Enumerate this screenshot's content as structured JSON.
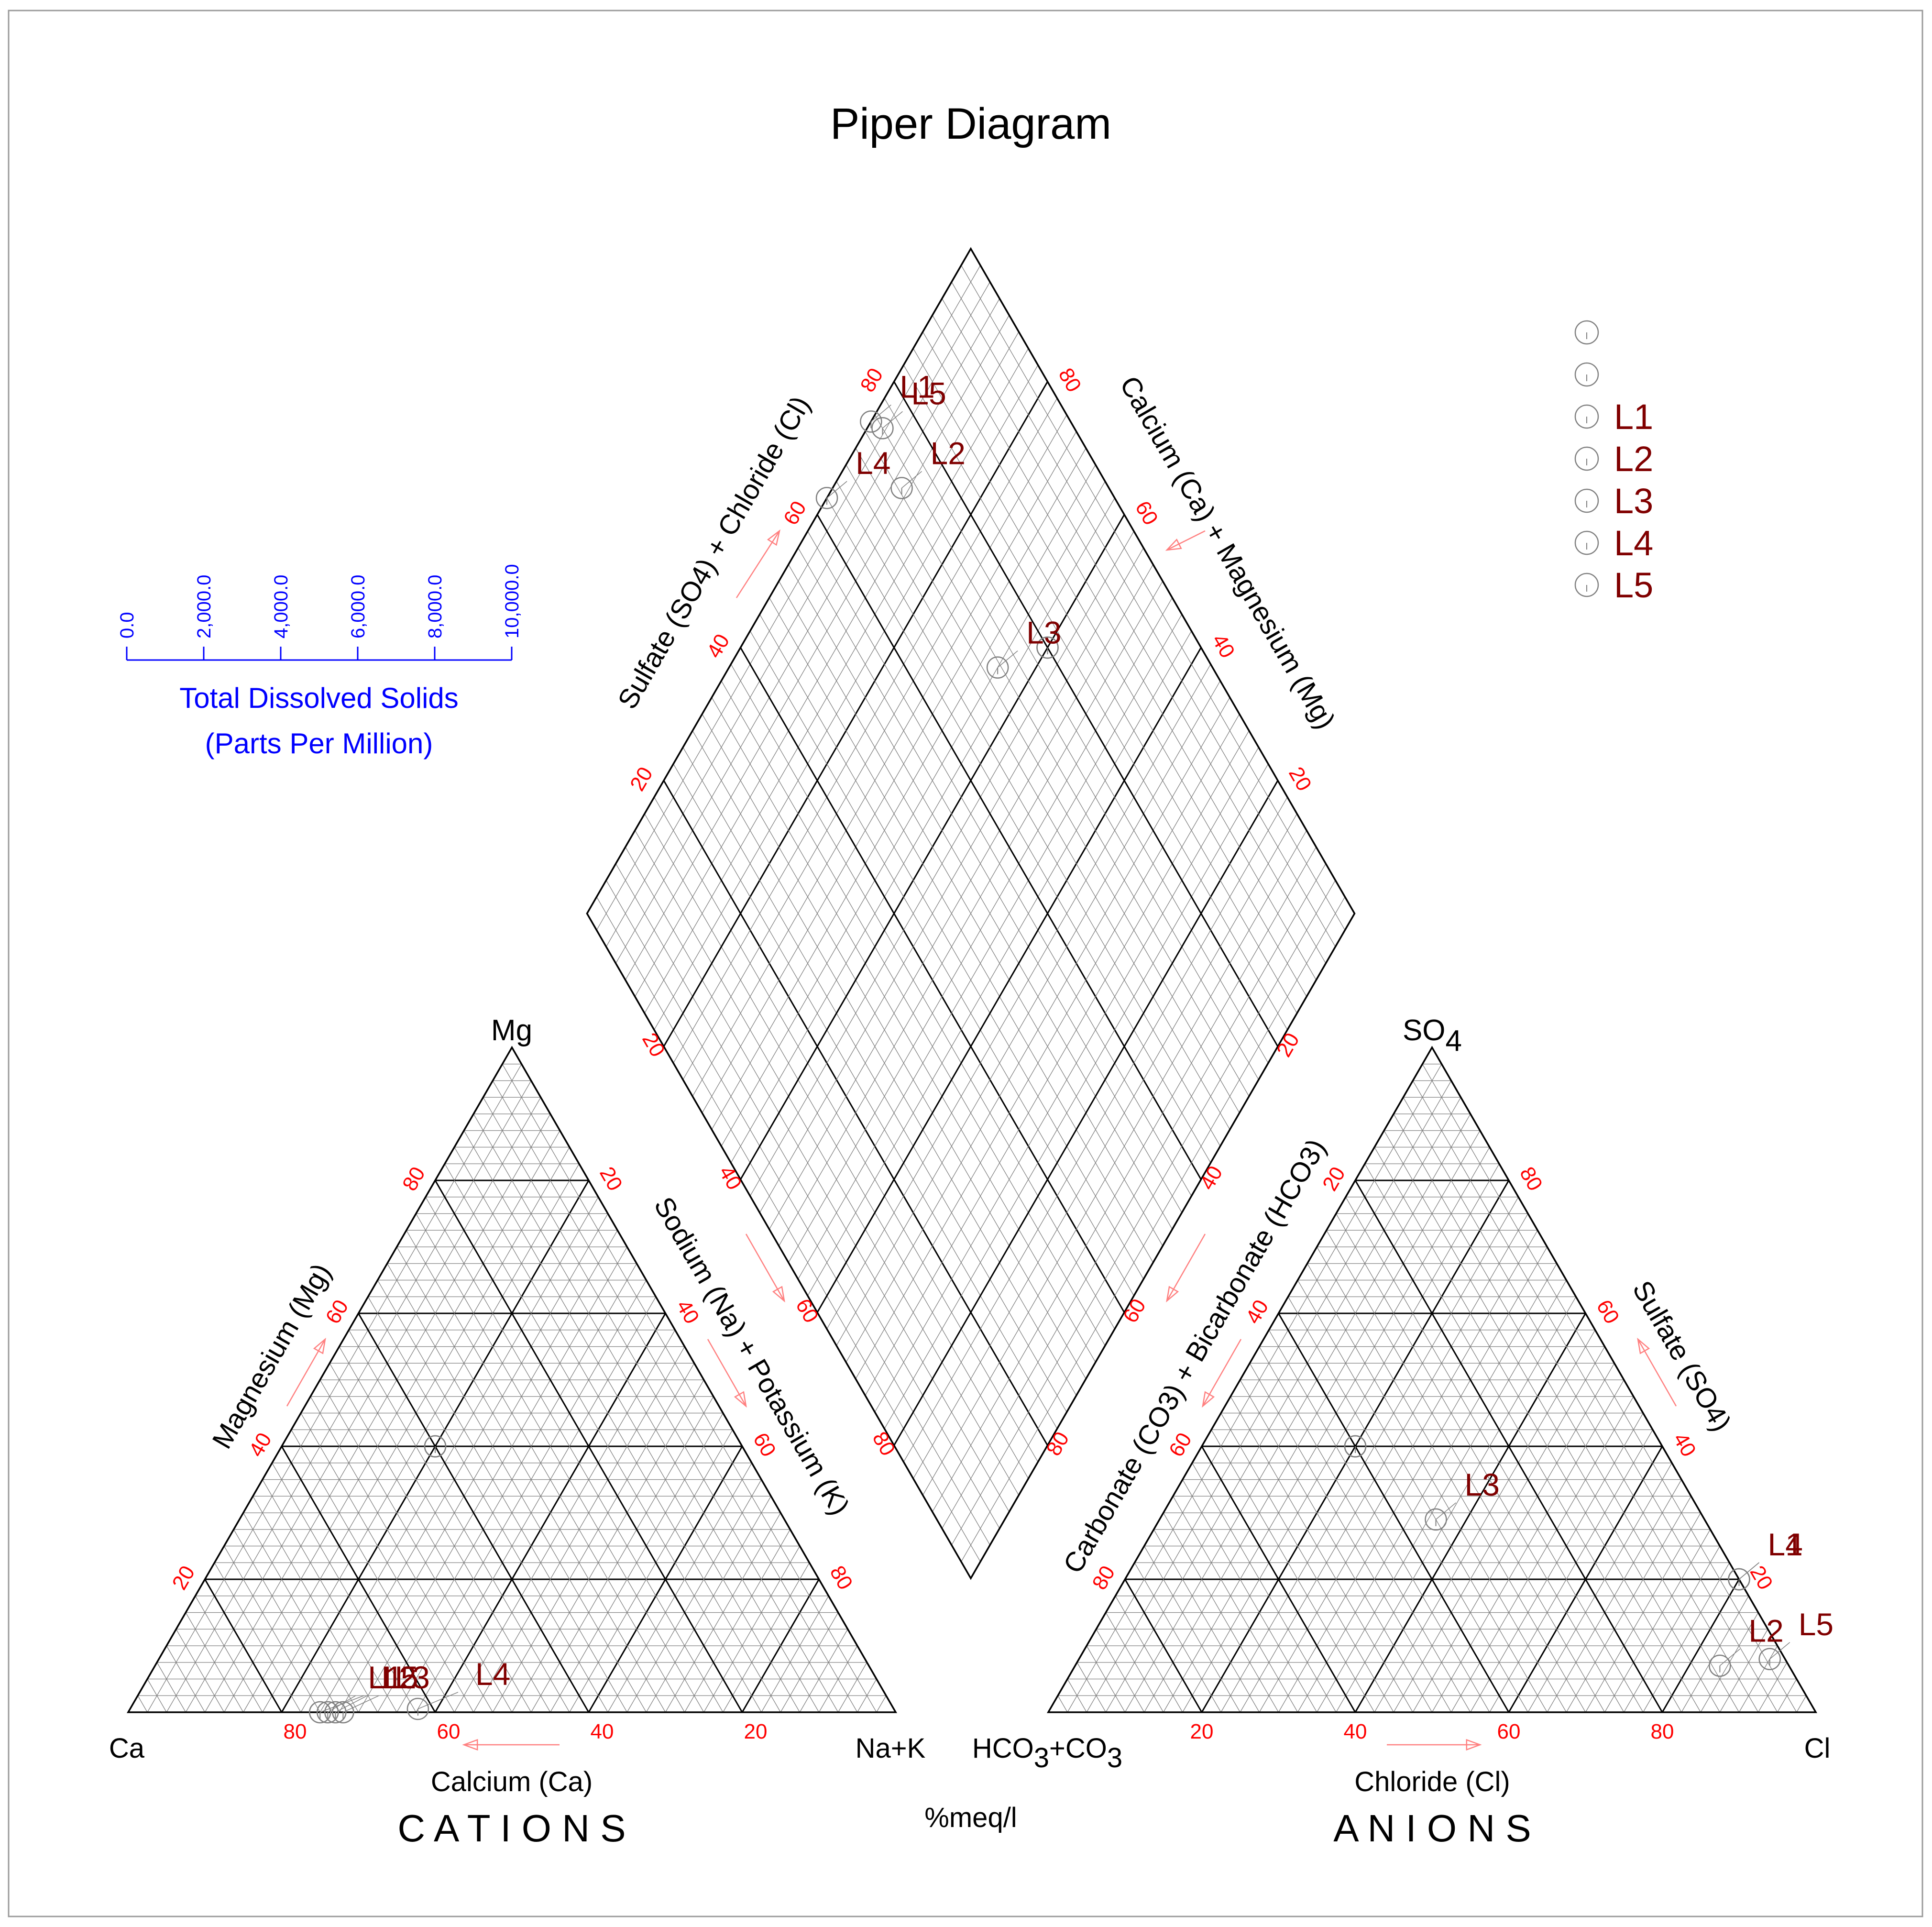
{
  "title": "Piper Diagram",
  "unit_label": "%meq/l",
  "colors": {
    "axis_number": "#ff0000",
    "arrow": "#ff8080",
    "sample_label": "#800000",
    "tds": "#0000ff",
    "grid_minor": "#808080",
    "grid_major": "#000000",
    "marker": "#808080"
  },
  "tds_scale": {
    "ticks": [
      "0.0",
      "2,000.0",
      "4,000.0",
      "6,000.0",
      "8,000.0",
      "10,000.0"
    ],
    "title_line1": "Total Dissolved Solids",
    "title_line2": "(Parts Per Million)"
  },
  "cations": {
    "section_title": "C A T I O N S",
    "apex_top": "Mg",
    "apex_left": "Ca",
    "apex_right": "Na+K",
    "axis_bottom": "Calcium (Ca)",
    "axis_left": "Magnesium (Mg)",
    "axis_right": "Sodium (Na) + Potassium (K)",
    "ticks_bottom": [
      "80",
      "60",
      "40",
      "20"
    ],
    "ticks_left": [
      "20",
      "40",
      "60",
      "80"
    ],
    "ticks_right": [
      "20",
      "40",
      "60",
      "80"
    ]
  },
  "anions": {
    "section_title": "A N I O N S",
    "apex_top": "SO",
    "apex_top_sub": "4",
    "apex_left": "HCO",
    "apex_left_sub": "3",
    "apex_left_rest": "+CO",
    "apex_left_sub2": "3",
    "apex_right": "Cl",
    "axis_bottom": "Chloride (Cl)",
    "axis_left": "Carbonate (CO3) + Bicarbonate (HCO3)",
    "axis_right": "Sulfate (SO4)",
    "ticks_bottom": [
      "20",
      "40",
      "60",
      "80"
    ],
    "ticks_left": [
      "80",
      "60",
      "40",
      "20"
    ],
    "ticks_right": [
      "80",
      "60",
      "40",
      "20"
    ]
  },
  "diamond": {
    "axis_upper_left": "Sulfate (SO4) + Chloride (Cl)",
    "axis_upper_right": "Calcium (Ca) + Magnesium (Mg)",
    "axis_lower_left": "",
    "axis_lower_right": "",
    "ticks_upper_left": [
      "20",
      "40",
      "60",
      "80"
    ],
    "ticks_upper_right": [
      "20",
      "40",
      "60",
      "80"
    ],
    "ticks_lower_left": [
      "20",
      "40",
      "60",
      "80"
    ],
    "ticks_lower_right": [
      "20",
      "40",
      "60",
      "80"
    ]
  },
  "legend": {
    "entries": [
      "",
      "",
      "L1",
      "L2",
      "L3",
      "L4",
      "L5"
    ]
  },
  "chart_data": {
    "type": "scatter",
    "title": "Piper Diagram",
    "subtype": "piper",
    "units": "%meq/l",
    "samples": [
      {
        "name": "",
        "cations": {
          "Ca": 40,
          "Mg": 40,
          "NaK": 20
        },
        "anions": {
          "Cl": 20,
          "SO4": 40,
          "HCO3CO3": 40
        }
      },
      {
        "name": "",
        "cations": {
          "Ca": 40,
          "Mg": 40,
          "NaK": 20
        },
        "anions": {
          "Cl": 20,
          "SO4": 40,
          "HCO3CO3": 40
        }
      },
      {
        "name": "L1",
        "cations": {
          "Ca": 74,
          "Mg": 0,
          "NaK": 26
        },
        "anions": {
          "Cl": 80,
          "SO4": 20,
          "HCO3CO3": 0
        }
      },
      {
        "name": "L2",
        "cations": {
          "Ca": 73,
          "Mg": 0,
          "NaK": 27
        },
        "anions": {
          "Cl": 84,
          "SO4": 7,
          "HCO3CO3": 9
        }
      },
      {
        "name": "L3",
        "cations": {
          "Ca": 72,
          "Mg": 0,
          "NaK": 28
        },
        "anions": {
          "Cl": 36,
          "SO4": 29,
          "HCO3CO3": 35
        }
      },
      {
        "name": "L4",
        "cations": {
          "Ca": 62,
          "Mg": 0.5,
          "NaK": 37.5
        },
        "anions": {
          "Cl": 80,
          "SO4": 20,
          "HCO3CO3": 0
        }
      },
      {
        "name": "L5",
        "cations": {
          "Ca": 75,
          "Mg": 0,
          "NaK": 25
        },
        "anions": {
          "Cl": 90,
          "SO4": 8,
          "HCO3CO3": 2
        }
      }
    ]
  }
}
